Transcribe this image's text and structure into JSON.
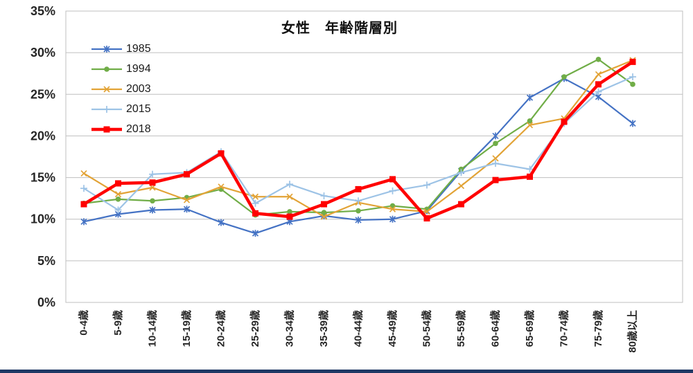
{
  "page": {
    "background": "#FFFFFF",
    "bottom_bar_color": "#1F3864",
    "grid_color": "#BFBFBF",
    "axis_text_color": "#262626"
  },
  "chart_data": {
    "type": "line",
    "title": "女性　年齢階層別",
    "categories": [
      "0-4歳",
      "5-9歳",
      "10-14歳",
      "15-19歳",
      "20-24歳",
      "25-29歳",
      "30-34歳",
      "35-39歳",
      "40-44歳",
      "45-49歳",
      "50-54歳",
      "55-59歳",
      "60-64歳",
      "65-69歳",
      "70-74歳",
      "75-79歳",
      "80歳以上"
    ],
    "y_ticks": [
      "0%",
      "5%",
      "10%",
      "15%",
      "20%",
      "25%",
      "30%",
      "35%"
    ],
    "ylim": [
      0,
      35
    ],
    "y_step": 5,
    "grid": true,
    "legend_position": "top-left-inside",
    "series": [
      {
        "name": "1985",
        "color": "#4472C4",
        "marker": "star",
        "line_width": 2.2,
        "values": [
          9.7,
          10.6,
          11.1,
          11.2,
          9.6,
          8.3,
          9.7,
          10.4,
          9.9,
          10.0,
          11.0,
          15.8,
          20.0,
          24.6,
          26.9,
          24.7,
          21.5
        ]
      },
      {
        "name": "1994",
        "color": "#70AD47",
        "marker": "circle",
        "line_width": 2.2,
        "values": [
          11.9,
          12.4,
          12.2,
          12.6,
          13.6,
          10.5,
          10.9,
          10.8,
          11.0,
          11.6,
          11.2,
          16.0,
          19.1,
          21.8,
          27.1,
          29.2,
          26.2
        ]
      },
      {
        "name": "2003",
        "color": "#E2A336",
        "marker": "x",
        "line_width": 2.2,
        "values": [
          15.5,
          13.0,
          13.8,
          12.3,
          13.9,
          12.7,
          12.7,
          10.3,
          12.0,
          11.2,
          10.9,
          14.0,
          17.3,
          21.3,
          22.1,
          27.4,
          29.1
        ]
      },
      {
        "name": "2015",
        "color": "#9DC3E6",
        "marker": "plus",
        "line_width": 2.2,
        "values": [
          13.7,
          11.1,
          15.4,
          15.6,
          18.1,
          11.9,
          14.2,
          12.8,
          12.2,
          13.4,
          14.1,
          15.6,
          16.7,
          16.0,
          21.5,
          25.3,
          27.1
        ]
      },
      {
        "name": "2018",
        "color": "#FF0000",
        "marker": "square",
        "line_width": 4.5,
        "values": [
          11.8,
          14.3,
          14.4,
          15.4,
          17.9,
          10.7,
          10.3,
          11.8,
          13.6,
          14.8,
          10.1,
          11.8,
          14.7,
          15.1,
          21.7,
          26.2,
          28.9
        ]
      }
    ]
  }
}
